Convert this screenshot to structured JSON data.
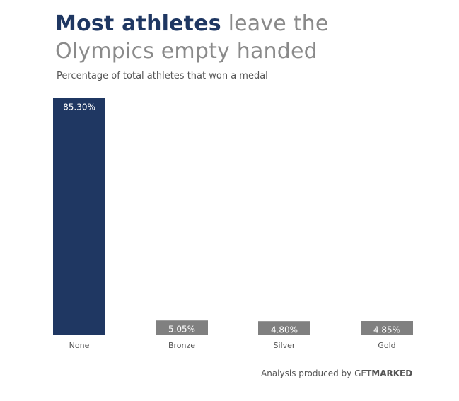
{
  "chart_data": {
    "type": "bar",
    "title_bold": "Most athletes",
    "title_rest_line1": "leave the",
    "title_line2": "Olympics empty handed",
    "subtitle": "Percentage of total athletes that won a medal",
    "categories": [
      "None",
      "Bronze",
      "Silver",
      "Gold"
    ],
    "values": [
      85.3,
      5.05,
      4.8,
      4.85
    ],
    "value_labels": [
      "85.30%",
      "5.05%",
      "4.80%",
      "4.85%"
    ],
    "unit": "%",
    "ylim": [
      0,
      85.3
    ],
    "grid": false,
    "legend": "none",
    "colors": {
      "highlight": "#1f3762",
      "muted": "#808080",
      "label_on_bar": "#ffffff",
      "category_label": "#555555"
    }
  },
  "credit": {
    "prefix": "Analysis produced by ",
    "brand_light": "GET",
    "brand_bold": "MARKED"
  }
}
